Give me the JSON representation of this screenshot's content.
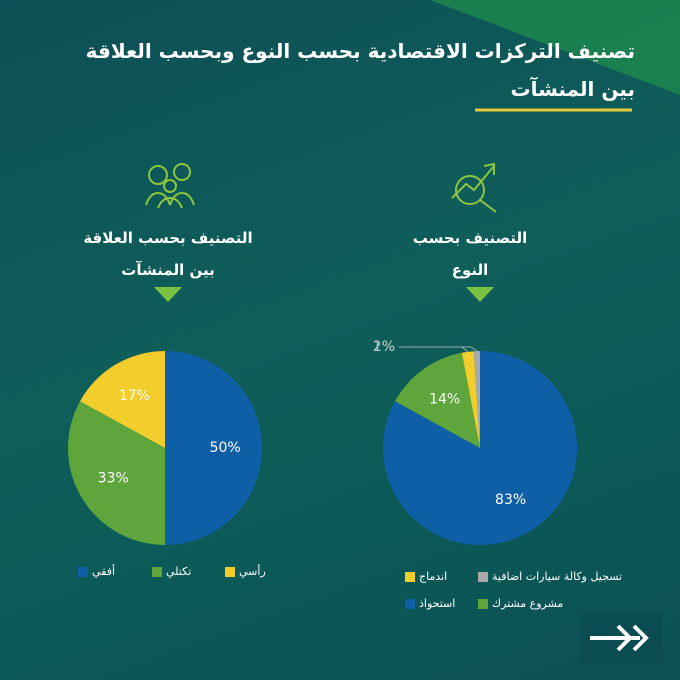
{
  "title": "تصنيف التركزات الاقتصادية بحسب النوع وبحسب العلاقة بين المنشآت",
  "chart_data": [
    {
      "type": "pie",
      "title": "التصنيف بحسب العلاقة بين المنشآت",
      "categories": [
        "أفقي",
        "تكتلي",
        "رأسي"
      ],
      "values": [
        50,
        33,
        17
      ],
      "value_labels": [
        "50%",
        "33%",
        "17%"
      ],
      "colors": [
        "#0f5fa6",
        "#5ea63c",
        "#f3cd2c"
      ]
    },
    {
      "type": "pie",
      "title": "التصنيف بحسب النوع",
      "categories": [
        "استحواذ",
        "مشروع مشترك",
        "اندماج",
        "تسجيل وكالة سيارات اضافية"
      ],
      "values": [
        83,
        14,
        2,
        1
      ],
      "value_labels": [
        "83%",
        "14%",
        "2%",
        "1%"
      ],
      "colors": [
        "#0f5fa6",
        "#5ea63c",
        "#f3cd2c",
        "#a9a9a9"
      ]
    }
  ]
}
